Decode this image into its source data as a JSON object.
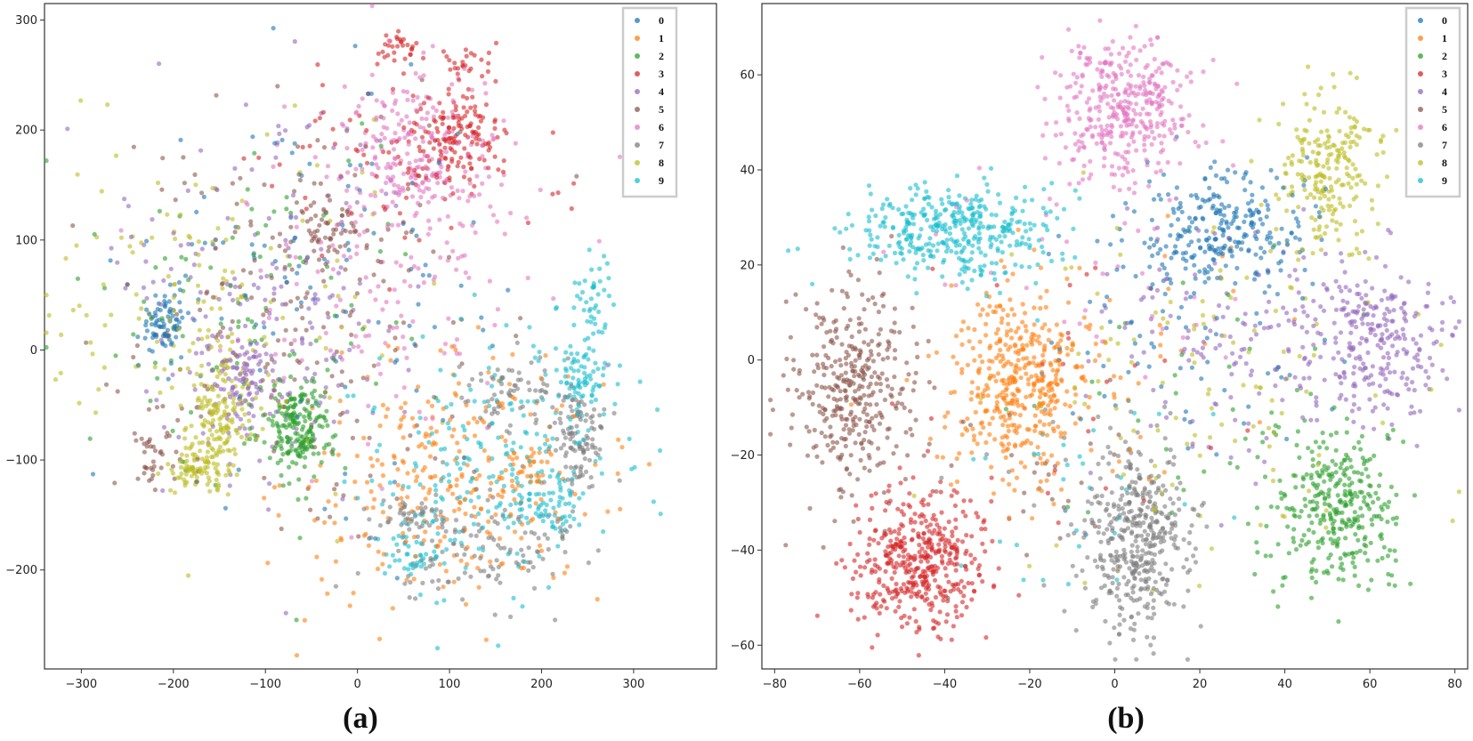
{
  "figure": {
    "colors": [
      "#1f77b4",
      "#ff7f0e",
      "#2ca02c",
      "#d62728",
      "#9467bd",
      "#8c564b",
      "#e377c2",
      "#7f7f7f",
      "#bcbd22",
      "#17becf"
    ]
  },
  "chart_data": [
    {
      "type": "scatter",
      "caption": "(a)",
      "legend": [
        "0",
        "1",
        "2",
        "3",
        "4",
        "5",
        "6",
        "7",
        "8",
        "9"
      ],
      "xlim": [
        -340,
        390
      ],
      "ylim": [
        -290,
        315
      ],
      "xticks": [
        -300,
        -200,
        -100,
        0,
        100,
        200,
        300
      ],
      "yticks": [
        -200,
        -100,
        0,
        100,
        200,
        300
      ],
      "xtick_labels": [
        "−300",
        "−200",
        "−100",
        "0",
        "100",
        "200",
        "300"
      ],
      "ytick_labels": [
        "−200",
        "−100",
        "0",
        "100",
        "200",
        "300"
      ],
      "legend_position": "top-right",
      "series": [
        {
          "name": "0",
          "clusters": [
            {
              "x": -210,
              "y": 25,
              "sx": 14,
              "sy": 14,
              "n": 80
            },
            {
              "x": -40,
              "y": 60,
              "sx": 95,
              "sy": 85,
              "n": 110
            }
          ]
        },
        {
          "name": "1",
          "clusters": [
            {
              "x": 100,
              "y": -120,
              "sx": 85,
              "sy": 55,
              "n": 280
            },
            {
              "x": 180,
              "y": -105,
              "sx": 12,
              "sy": 14,
              "n": 30
            }
          ]
        },
        {
          "name": "2",
          "clusters": [
            {
              "x": -65,
              "y": -70,
              "sx": 18,
              "sy": 22,
              "n": 200
            },
            {
              "x": -90,
              "y": 40,
              "sx": 90,
              "sy": 85,
              "n": 100
            }
          ]
        },
        {
          "name": "3",
          "clusters": [
            {
              "x": 110,
              "y": 195,
              "sx": 20,
              "sy": 22,
              "n": 130
            },
            {
              "x": 45,
              "y": 275,
              "sx": 10,
              "sy": 6,
              "n": 28
            },
            {
              "x": 115,
              "y": 260,
              "sx": 16,
              "sy": 6,
              "n": 22
            },
            {
              "x": 60,
              "y": 175,
              "sx": 85,
              "sy": 40,
              "n": 90
            }
          ]
        },
        {
          "name": "4",
          "clusters": [
            {
              "x": -120,
              "y": -30,
              "sx": 18,
              "sy": 20,
              "n": 90
            },
            {
              "x": -100,
              "y": 50,
              "sx": 80,
              "sy": 90,
              "n": 200
            }
          ]
        },
        {
          "name": "5",
          "clusters": [
            {
              "x": -35,
              "y": 110,
              "sx": 25,
              "sy": 14,
              "n": 50
            },
            {
              "x": -220,
              "y": -95,
              "sx": 14,
              "sy": 22,
              "n": 40
            },
            {
              "x": -60,
              "y": 30,
              "sx": 95,
              "sy": 90,
              "n": 200
            }
          ]
        },
        {
          "name": "6",
          "clusters": [
            {
              "x": 60,
              "y": 180,
              "sx": 40,
              "sy": 35,
              "n": 220
            },
            {
              "x": 40,
              "y": 70,
              "sx": 80,
              "sy": 75,
              "n": 150
            }
          ]
        },
        {
          "name": "7",
          "clusters": [
            {
              "x": 240,
              "y": -80,
              "sx": 15,
              "sy": 20,
              "n": 110
            },
            {
              "x": 170,
              "y": -40,
              "sx": 25,
              "sy": 20,
              "n": 70
            },
            {
              "x": 130,
              "y": -180,
              "sx": 55,
              "sy": 25,
              "n": 140
            },
            {
              "x": 60,
              "y": -150,
              "sx": 20,
              "sy": 10,
              "n": 40
            }
          ]
        },
        {
          "name": "8",
          "clusters": [
            {
              "x": -150,
              "y": -60,
              "sx": 16,
              "sy": 30,
              "n": 160
            },
            {
              "x": -175,
              "y": -105,
              "sx": 16,
              "sy": 12,
              "n": 70
            },
            {
              "x": -150,
              "y": 30,
              "sx": 90,
              "sy": 80,
              "n": 150
            }
          ]
        },
        {
          "name": "9",
          "clusters": [
            {
              "x": 245,
              "y": -25,
              "sx": 14,
              "sy": 14,
              "n": 70
            },
            {
              "x": 255,
              "y": 45,
              "sx": 8,
              "sy": 20,
              "n": 40
            },
            {
              "x": 205,
              "y": -140,
              "sx": 18,
              "sy": 12,
              "n": 60
            },
            {
              "x": 150,
              "y": -100,
              "sx": 80,
              "sy": 60,
              "n": 220
            },
            {
              "x": 60,
              "y": -190,
              "sx": 15,
              "sy": 12,
              "n": 40
            }
          ]
        }
      ]
    },
    {
      "type": "scatter",
      "caption": "(b)",
      "legend": [
        "0",
        "1",
        "2",
        "3",
        "4",
        "5",
        "6",
        "7",
        "8",
        "9"
      ],
      "xlim": [
        -83,
        83
      ],
      "ylim": [
        -65,
        75
      ],
      "xticks": [
        -80,
        -60,
        -40,
        -20,
        0,
        20,
        40,
        60,
        80
      ],
      "yticks": [
        -60,
        -40,
        -20,
        0,
        20,
        40,
        60
      ],
      "xtick_labels": [
        "−80",
        "−60",
        "−40",
        "−20",
        "0",
        "20",
        "40",
        "60",
        "80"
      ],
      "ytick_labels": [
        "−60",
        "−40",
        "−20",
        "0",
        "20",
        "40",
        "60"
      ],
      "legend_position": "top-right",
      "series": [
        {
          "name": "0",
          "clusters": [
            {
              "x": 25,
              "y": 28,
              "sx": 10,
              "sy": 6,
              "n": 260
            },
            {
              "x": 15,
              "y": 5,
              "sx": 18,
              "sy": 15,
              "n": 80
            }
          ]
        },
        {
          "name": "1",
          "clusters": [
            {
              "x": -22,
              "y": -5,
              "sx": 8,
              "sy": 10,
              "n": 420
            },
            {
              "x": 0,
              "y": 0,
              "sx": 18,
              "sy": 15,
              "n": 40
            }
          ]
        },
        {
          "name": "2",
          "clusters": [
            {
              "x": 52,
              "y": -32,
              "sx": 7,
              "sy": 9,
              "n": 330
            },
            {
              "x": 20,
              "y": -10,
              "sx": 20,
              "sy": 15,
              "n": 40
            }
          ]
        },
        {
          "name": "3",
          "clusters": [
            {
              "x": -46,
              "y": -43,
              "sx": 8,
              "sy": 7,
              "n": 440
            },
            {
              "x": -10,
              "y": -5,
              "sx": 20,
              "sy": 15,
              "n": 25
            }
          ]
        },
        {
          "name": "4",
          "clusters": [
            {
              "x": 60,
              "y": 5,
              "sx": 9,
              "sy": 8,
              "n": 280
            },
            {
              "x": 25,
              "y": 5,
              "sx": 15,
              "sy": 15,
              "n": 120
            }
          ]
        },
        {
          "name": "5",
          "clusters": [
            {
              "x": -62,
              "y": -5,
              "sx": 7,
              "sy": 10,
              "n": 360
            },
            {
              "x": -20,
              "y": -25,
              "sx": 15,
              "sy": 10,
              "n": 30
            }
          ]
        },
        {
          "name": "6",
          "clusters": [
            {
              "x": 2,
              "y": 53,
              "sx": 8,
              "sy": 8,
              "n": 380
            },
            {
              "x": -5,
              "y": 20,
              "sx": 20,
              "sy": 15,
              "n": 40
            }
          ]
        },
        {
          "name": "7",
          "clusters": [
            {
              "x": 5,
              "y": -38,
              "sx": 6,
              "sy": 10,
              "n": 420
            },
            {
              "x": -10,
              "y": -25,
              "sx": 15,
              "sy": 10,
              "n": 30
            }
          ]
        },
        {
          "name": "8",
          "clusters": [
            {
              "x": 50,
              "y": 40,
              "sx": 6,
              "sy": 8,
              "n": 220
            },
            {
              "x": 20,
              "y": -5,
              "sx": 25,
              "sy": 20,
              "n": 120
            }
          ]
        },
        {
          "name": "9",
          "clusters": [
            {
              "x": -38,
              "y": 27,
              "sx": 12,
              "sy": 5,
              "n": 380
            },
            {
              "x": -5,
              "y": -25,
              "sx": 20,
              "sy": 12,
              "n": 30
            }
          ]
        }
      ]
    }
  ]
}
